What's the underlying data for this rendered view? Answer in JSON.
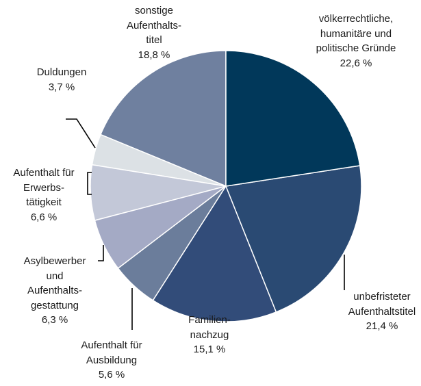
{
  "chart_data": {
    "type": "pie",
    "categories": [
      "völkerrechtliche,\nhumanitäre und\npolitische Gründe",
      "unbefristeter\nAufenthaltstitel",
      "Familien-\nnachzug",
      "Aufenthalt für\nAusbildung",
      "Asylbewerber\nund\nAufenthalts-\ngestattung",
      "Aufenthalt für\nErwerbs-\ntätigkeit",
      "Duldungen",
      "sonstige\nAufenthalts-\ntitel"
    ],
    "values": [
      22.6,
      21.4,
      15.1,
      5.6,
      6.3,
      6.6,
      3.7,
      18.8
    ],
    "value_labels": [
      "22,6 %",
      "21,4 %",
      "15,1 %",
      "5,6 %",
      "6,3 %",
      "6,6 %",
      "3,7 %",
      "18,8 %"
    ],
    "colors": [
      "#01385a",
      "#2a4a73",
      "#324c79",
      "#6b7d9b",
      "#a4aac5",
      "#c3c8d8",
      "#dce1e5",
      "#6f809f"
    ]
  }
}
